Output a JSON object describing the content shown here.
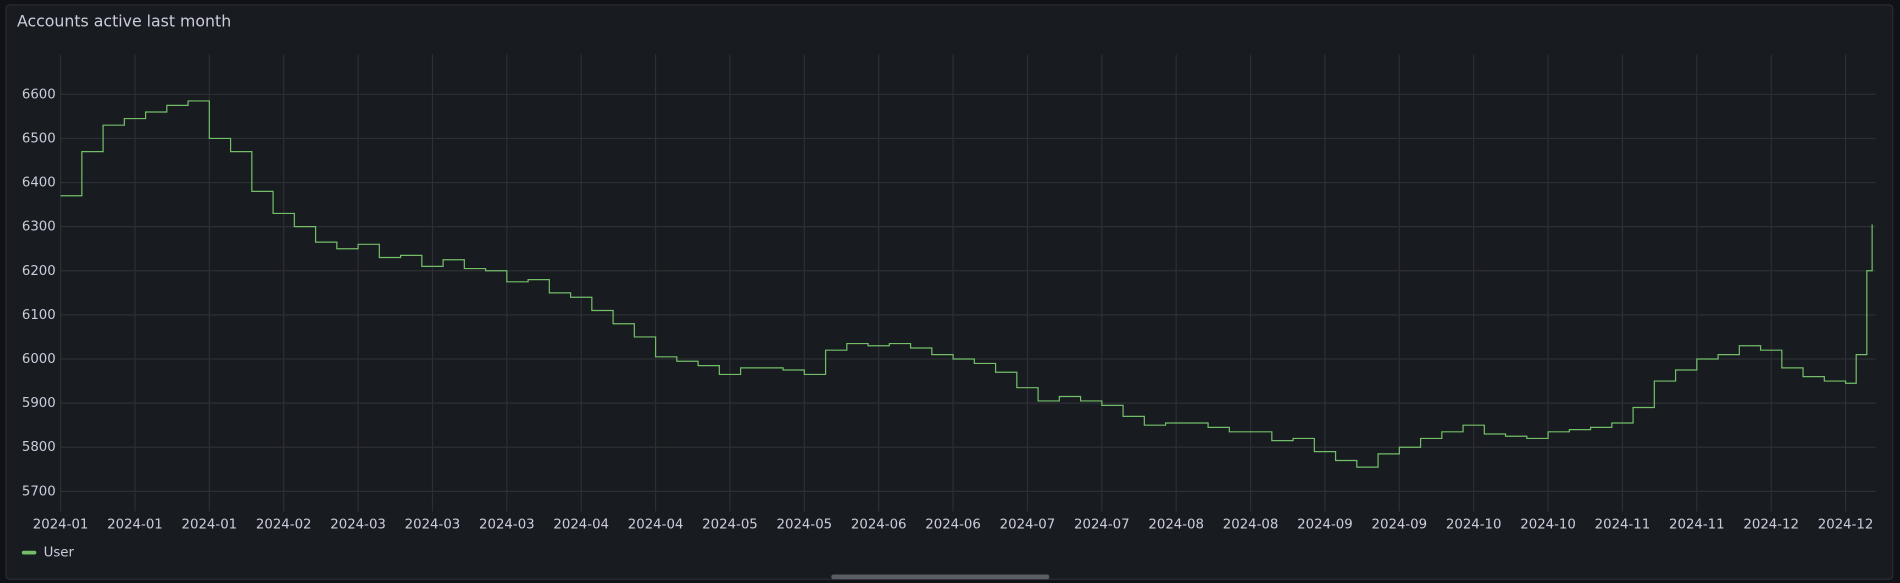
{
  "chart_data": {
    "type": "line",
    "title": "Accounts active last month",
    "x": [
      0,
      4,
      8,
      12,
      16,
      20,
      24,
      28,
      32,
      36,
      40,
      44,
      48,
      52,
      56,
      60,
      64,
      68,
      72,
      76,
      80,
      84,
      88,
      92,
      96,
      100,
      104,
      108,
      112,
      116,
      120,
      124,
      128,
      132,
      136,
      140,
      144,
      148,
      152,
      156,
      160,
      164,
      168,
      172,
      176,
      180,
      184,
      188,
      192,
      196,
      200,
      204,
      208,
      212,
      216,
      220,
      224,
      228,
      232,
      236,
      240,
      244,
      248,
      252,
      256,
      260,
      264,
      268,
      272,
      276,
      280,
      284,
      288,
      292,
      296,
      300,
      304,
      308,
      312,
      316,
      320,
      324,
      328,
      332,
      336,
      338,
      340,
      341
    ],
    "series": [
      {
        "name": "User",
        "color": "#73bf69",
        "values": [
          6370,
          6470,
          6530,
          6545,
          6560,
          6575,
          6585,
          6500,
          6470,
          6380,
          6330,
          6300,
          6265,
          6250,
          6260,
          6230,
          6235,
          6210,
          6225,
          6205,
          6200,
          6175,
          6180,
          6150,
          6140,
          6110,
          6080,
          6050,
          6005,
          5995,
          5985,
          5965,
          5980,
          5980,
          5975,
          5965,
          6020,
          6035,
          6030,
          6035,
          6025,
          6010,
          6000,
          5990,
          5970,
          5935,
          5905,
          5915,
          5905,
          5895,
          5870,
          5850,
          5855,
          5855,
          5845,
          5835,
          5835,
          5815,
          5820,
          5790,
          5770,
          5755,
          5785,
          5800,
          5820,
          5835,
          5850,
          5830,
          5825,
          5820,
          5835,
          5840,
          5845,
          5855,
          5890,
          5950,
          5975,
          6000,
          6010,
          6030,
          6020,
          5980,
          5960,
          5950,
          5945,
          6010,
          6200,
          6305
        ]
      }
    ],
    "xlim": [
      0,
      341
    ],
    "xticks": [
      {
        "value": 0,
        "label": "2024-01"
      },
      {
        "value": 14,
        "label": "2024-01"
      },
      {
        "value": 28,
        "label": "2024-01"
      },
      {
        "value": 42,
        "label": "2024-02"
      },
      {
        "value": 56,
        "label": "2024-03"
      },
      {
        "value": 70,
        "label": "2024-03"
      },
      {
        "value": 84,
        "label": "2024-03"
      },
      {
        "value": 98,
        "label": "2024-04"
      },
      {
        "value": 112,
        "label": "2024-04"
      },
      {
        "value": 126,
        "label": "2024-05"
      },
      {
        "value": 140,
        "label": "2024-05"
      },
      {
        "value": 154,
        "label": "2024-06"
      },
      {
        "value": 168,
        "label": "2024-06"
      },
      {
        "value": 182,
        "label": "2024-07"
      },
      {
        "value": 196,
        "label": "2024-07"
      },
      {
        "value": 210,
        "label": "2024-08"
      },
      {
        "value": 224,
        "label": "2024-08"
      },
      {
        "value": 238,
        "label": "2024-09"
      },
      {
        "value": 252,
        "label": "2024-09"
      },
      {
        "value": 266,
        "label": "2024-10"
      },
      {
        "value": 280,
        "label": "2024-10"
      },
      {
        "value": 294,
        "label": "2024-11"
      },
      {
        "value": 308,
        "label": "2024-11"
      },
      {
        "value": 322,
        "label": "2024-12"
      },
      {
        "value": 336,
        "label": "2024-12"
      }
    ],
    "ylim": [
      5660,
      6690
    ],
    "yticks": [
      5700,
      5800,
      5900,
      6000,
      6100,
      6200,
      6300,
      6400,
      6500,
      6600
    ],
    "grid": true,
    "legend": "bottom-left",
    "line_style": "step"
  }
}
